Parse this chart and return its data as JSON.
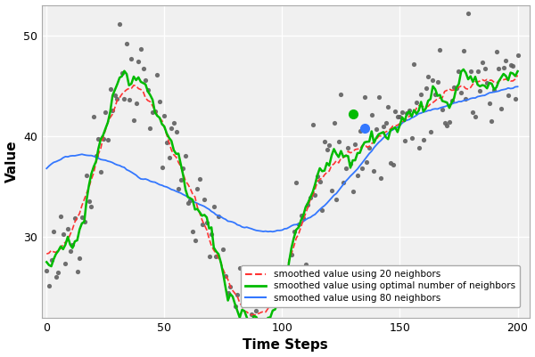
{
  "title": "",
  "xlabel": "Time Steps",
  "ylabel": "Value",
  "xlim": [
    -2,
    205
  ],
  "ylim": [
    22,
    53
  ],
  "xticks": [
    0,
    50,
    100,
    150,
    200
  ],
  "yticks": [
    30,
    40,
    50
  ],
  "background_color": "#ffffff",
  "plot_bg_color": "#f0f0f0",
  "grid_color": "#ffffff",
  "scatter_color": "#606060",
  "line_color_20": "#ff3333",
  "line_color_opt": "#00bb00",
  "line_color_80": "#3377ff",
  "legend_labels": [
    "smoothed value using 20 neighbors",
    "smoothed value using optimal number of neighbors",
    "smoothed value using 80 neighbors"
  ],
  "marker_opt_x": 130,
  "marker_opt_y": 42.2,
  "marker_80_x": 135,
  "marker_80_y": 40.8,
  "random_seed": 42,
  "n_points": 201,
  "noise_std": 2.8
}
